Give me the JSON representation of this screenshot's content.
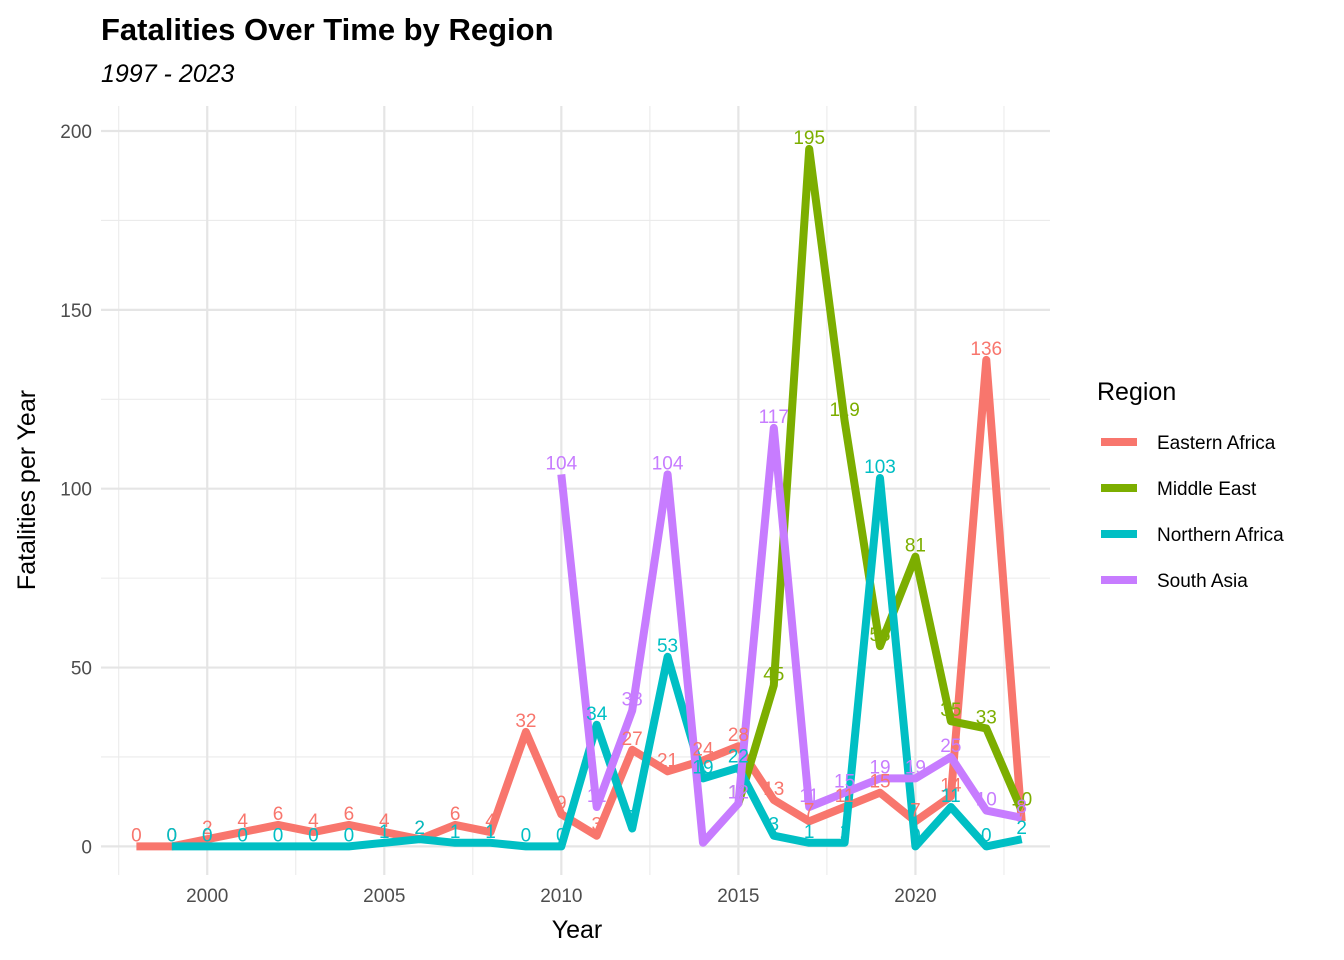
{
  "chart_data": {
    "type": "line",
    "title": "Fatalities Over Time by Region",
    "subtitle": "1997 - 2023",
    "xlabel": "Year",
    "ylabel": "Fatalities per Year",
    "xlim": [
      1997,
      2023.8
    ],
    "ylim": [
      -8,
      207
    ],
    "x_ticks": [
      2000,
      2005,
      2010,
      2015,
      2020
    ],
    "y_ticks": [
      0,
      50,
      100,
      150,
      200
    ],
    "grid": true,
    "legend": {
      "title": "Region",
      "position": "right"
    },
    "series": [
      {
        "name": "Eastern Africa",
        "color": "#F8766D",
        "points": [
          [
            1998,
            0
          ],
          [
            1999,
            0
          ],
          [
            2000,
            2
          ],
          [
            2001,
            4
          ],
          [
            2002,
            6
          ],
          [
            2003,
            4
          ],
          [
            2004,
            6
          ],
          [
            2005,
            4
          ],
          [
            2006,
            2
          ],
          [
            2007,
            6
          ],
          [
            2008,
            4
          ],
          [
            2009,
            32
          ],
          [
            2010,
            9
          ],
          [
            2011,
            3
          ],
          [
            2012,
            27
          ],
          [
            2013,
            21
          ],
          [
            2014,
            24
          ],
          [
            2015,
            28
          ],
          [
            2016,
            13
          ],
          [
            2017,
            7
          ],
          [
            2018,
            11
          ],
          [
            2019,
            15
          ],
          [
            2020,
            7
          ],
          [
            2021,
            14
          ],
          [
            2022,
            136
          ],
          [
            2023,
            7
          ]
        ]
      },
      {
        "name": "Middle East",
        "color": "#7CAE00",
        "points": [
          [
            2015,
            12
          ],
          [
            2016,
            45
          ],
          [
            2017,
            195
          ],
          [
            2018,
            119
          ],
          [
            2019,
            56
          ],
          [
            2020,
            81
          ],
          [
            2021,
            35
          ],
          [
            2022,
            33
          ],
          [
            2023,
            10
          ]
        ]
      },
      {
        "name": "Northern Africa",
        "color": "#00BFC4",
        "points": [
          [
            1999,
            0
          ],
          [
            2000,
            0
          ],
          [
            2001,
            0
          ],
          [
            2002,
            0
          ],
          [
            2003,
            0
          ],
          [
            2004,
            0
          ],
          [
            2005,
            1
          ],
          [
            2006,
            2
          ],
          [
            2007,
            1
          ],
          [
            2008,
            1
          ],
          [
            2009,
            0
          ],
          [
            2010,
            0
          ],
          [
            2011,
            34
          ],
          [
            2012,
            5
          ],
          [
            2013,
            53
          ],
          [
            2014,
            19
          ],
          [
            2015,
            22
          ],
          [
            2016,
            3
          ],
          [
            2017,
            1
          ],
          [
            2018,
            1
          ],
          [
            2019,
            103
          ],
          [
            2020,
            0
          ],
          [
            2021,
            11
          ],
          [
            2022,
            0
          ],
          [
            2023,
            2
          ]
        ]
      },
      {
        "name": "South Asia",
        "color": "#C77CFF",
        "points": [
          [
            2010,
            104
          ],
          [
            2011,
            11
          ],
          [
            2012,
            38
          ],
          [
            2013,
            104
          ],
          [
            2014,
            1
          ],
          [
            2015,
            12
          ],
          [
            2016,
            117
          ],
          [
            2017,
            11
          ],
          [
            2018,
            15
          ],
          [
            2019,
            19
          ],
          [
            2020,
            19
          ],
          [
            2021,
            25
          ],
          [
            2022,
            10
          ],
          [
            2023,
            8
          ]
        ]
      }
    ]
  }
}
